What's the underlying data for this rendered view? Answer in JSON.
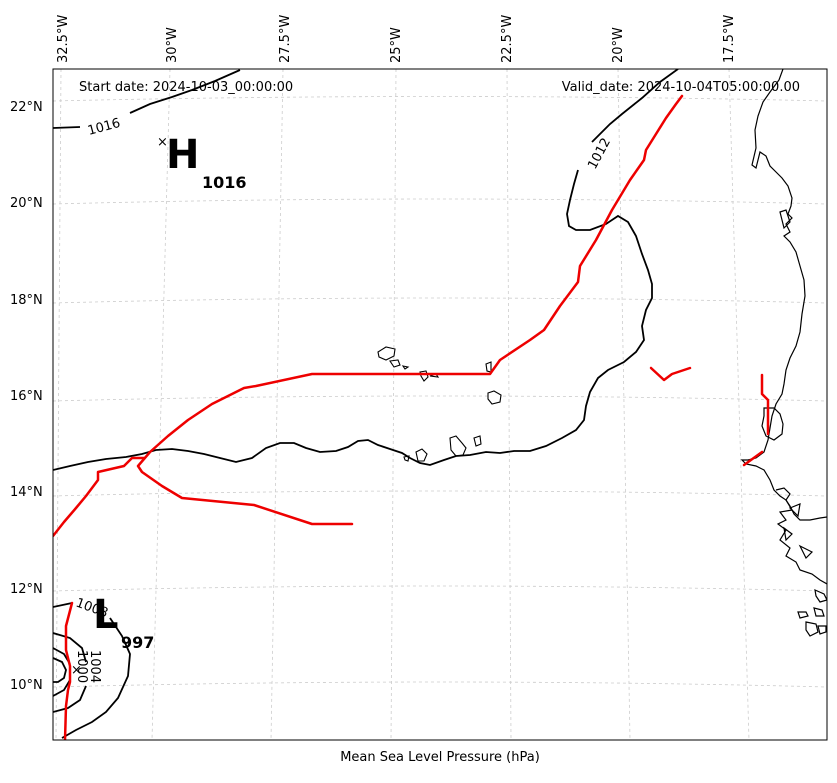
{
  "map": {
    "start_date_label": "Start date: 2024-10-03_00:00:00",
    "valid_date_label": "Valid_date: 2024-10-04T05:00:00.00",
    "caption": "Mean Sea Level Pressure (hPa)",
    "region": "Eastern tropical Atlantic / Cape Verde / West African coast",
    "line_colors": {
      "isobar": "#000000",
      "track": "#ee0000",
      "coastline": "#000000",
      "grid": "#cccccc"
    },
    "lon_ticks": [
      "32.5°W",
      "30°W",
      "27.5°W",
      "25°W",
      "22.5°W",
      "20°W",
      "17.5°W"
    ],
    "lat_ticks": [
      "22°N",
      "20°N",
      "18°N",
      "16°N",
      "14°N",
      "12°N",
      "10°N"
    ],
    "pressure_centers": [
      {
        "type": "high",
        "letter": "H",
        "value": "1016",
        "marker": "×"
      },
      {
        "type": "low",
        "letter": "L",
        "value": "997",
        "marker": "×"
      }
    ],
    "contour_labels": [
      "1016",
      "1012",
      "1008",
      "1004",
      "1000"
    ]
  }
}
